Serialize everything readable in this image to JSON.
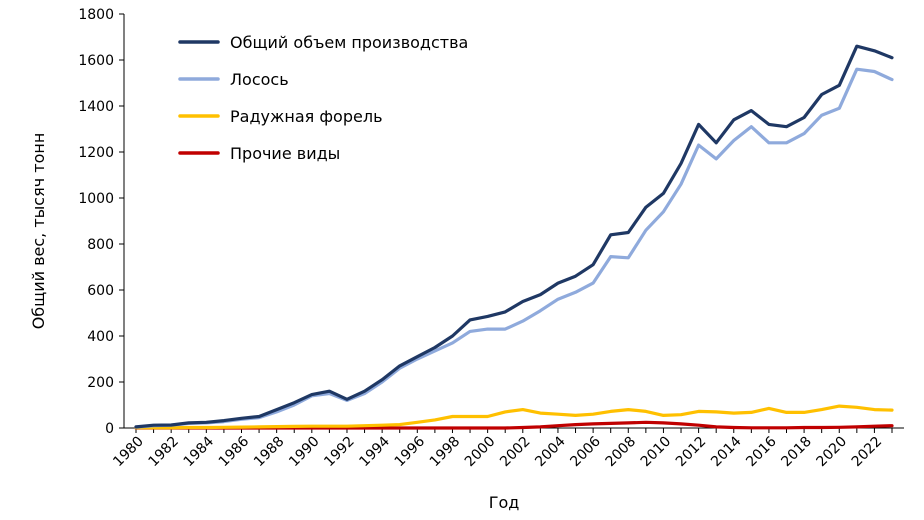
{
  "chart_data": {
    "type": "line",
    "title": "",
    "xlabel": "Год",
    "ylabel": "Общий вес, тысяч тонн",
    "xlim": [
      1980,
      2023
    ],
    "ylim": [
      0,
      1800
    ],
    "yticks": [
      0,
      200,
      400,
      600,
      800,
      1000,
      1200,
      1400,
      1600,
      1800
    ],
    "xticks": [
      1980,
      1982,
      1984,
      1986,
      1988,
      1990,
      1992,
      1994,
      1996,
      1998,
      2000,
      2002,
      2004,
      2006,
      2008,
      2010,
      2012,
      2014,
      2016,
      2018,
      2020,
      2022
    ],
    "grid": false,
    "legend_position": "top-left",
    "x": [
      1980,
      1981,
      1982,
      1983,
      1984,
      1985,
      1986,
      1987,
      1988,
      1989,
      1990,
      1991,
      1992,
      1993,
      1994,
      1995,
      1996,
      1997,
      1998,
      1999,
      2000,
      2001,
      2002,
      2003,
      2004,
      2005,
      2006,
      2007,
      2008,
      2009,
      2010,
      2011,
      2012,
      2013,
      2014,
      2015,
      2016,
      2017,
      2018,
      2019,
      2020,
      2021,
      2022,
      2023
    ],
    "series": [
      {
        "name": "Общий объем производства",
        "color": "#1f3864",
        "values": [
          5,
          12,
          13,
          22,
          25,
          32,
          42,
          50,
          80,
          110,
          145,
          160,
          125,
          160,
          210,
          270,
          310,
          350,
          400,
          470,
          485,
          505,
          550,
          580,
          630,
          660,
          710,
          840,
          850,
          960,
          1020,
          1150,
          1320,
          1240,
          1340,
          1380,
          1320,
          1310,
          1350,
          1450,
          1490,
          1660,
          1640,
          1610
        ]
      },
      {
        "name": "Лосось",
        "color": "#8faadc",
        "values": [
          4,
          10,
          12,
          20,
          22,
          28,
          38,
          45,
          70,
          100,
          140,
          150,
          120,
          150,
          200,
          260,
          300,
          335,
          370,
          420,
          430,
          430,
          465,
          510,
          560,
          590,
          630,
          745,
          740,
          860,
          940,
          1060,
          1230,
          1170,
          1250,
          1310,
          1240,
          1240,
          1280,
          1360,
          1390,
          1560,
          1550,
          1515
        ]
      },
      {
        "name": "Радужная форель",
        "color": "#ffc000",
        "values": [
          1,
          1,
          1,
          2,
          2,
          3,
          4,
          5,
          6,
          7,
          8,
          8,
          8,
          10,
          12,
          15,
          25,
          35,
          50,
          50,
          50,
          70,
          80,
          65,
          60,
          55,
          60,
          72,
          80,
          72,
          55,
          58,
          72,
          70,
          65,
          68,
          85,
          68,
          68,
          80,
          95,
          90,
          80,
          78
        ]
      },
      {
        "name": "Прочие виды",
        "color": "#c00000",
        "values": [
          0,
          0,
          0,
          0,
          0,
          0,
          0,
          0,
          0,
          0,
          0,
          0,
          0,
          0,
          0,
          0,
          0,
          0,
          0,
          0,
          0,
          0,
          2,
          5,
          10,
          15,
          18,
          20,
          22,
          25,
          22,
          18,
          12,
          5,
          2,
          1,
          1,
          1,
          2,
          2,
          3,
          5,
          8,
          10
        ]
      }
    ]
  }
}
